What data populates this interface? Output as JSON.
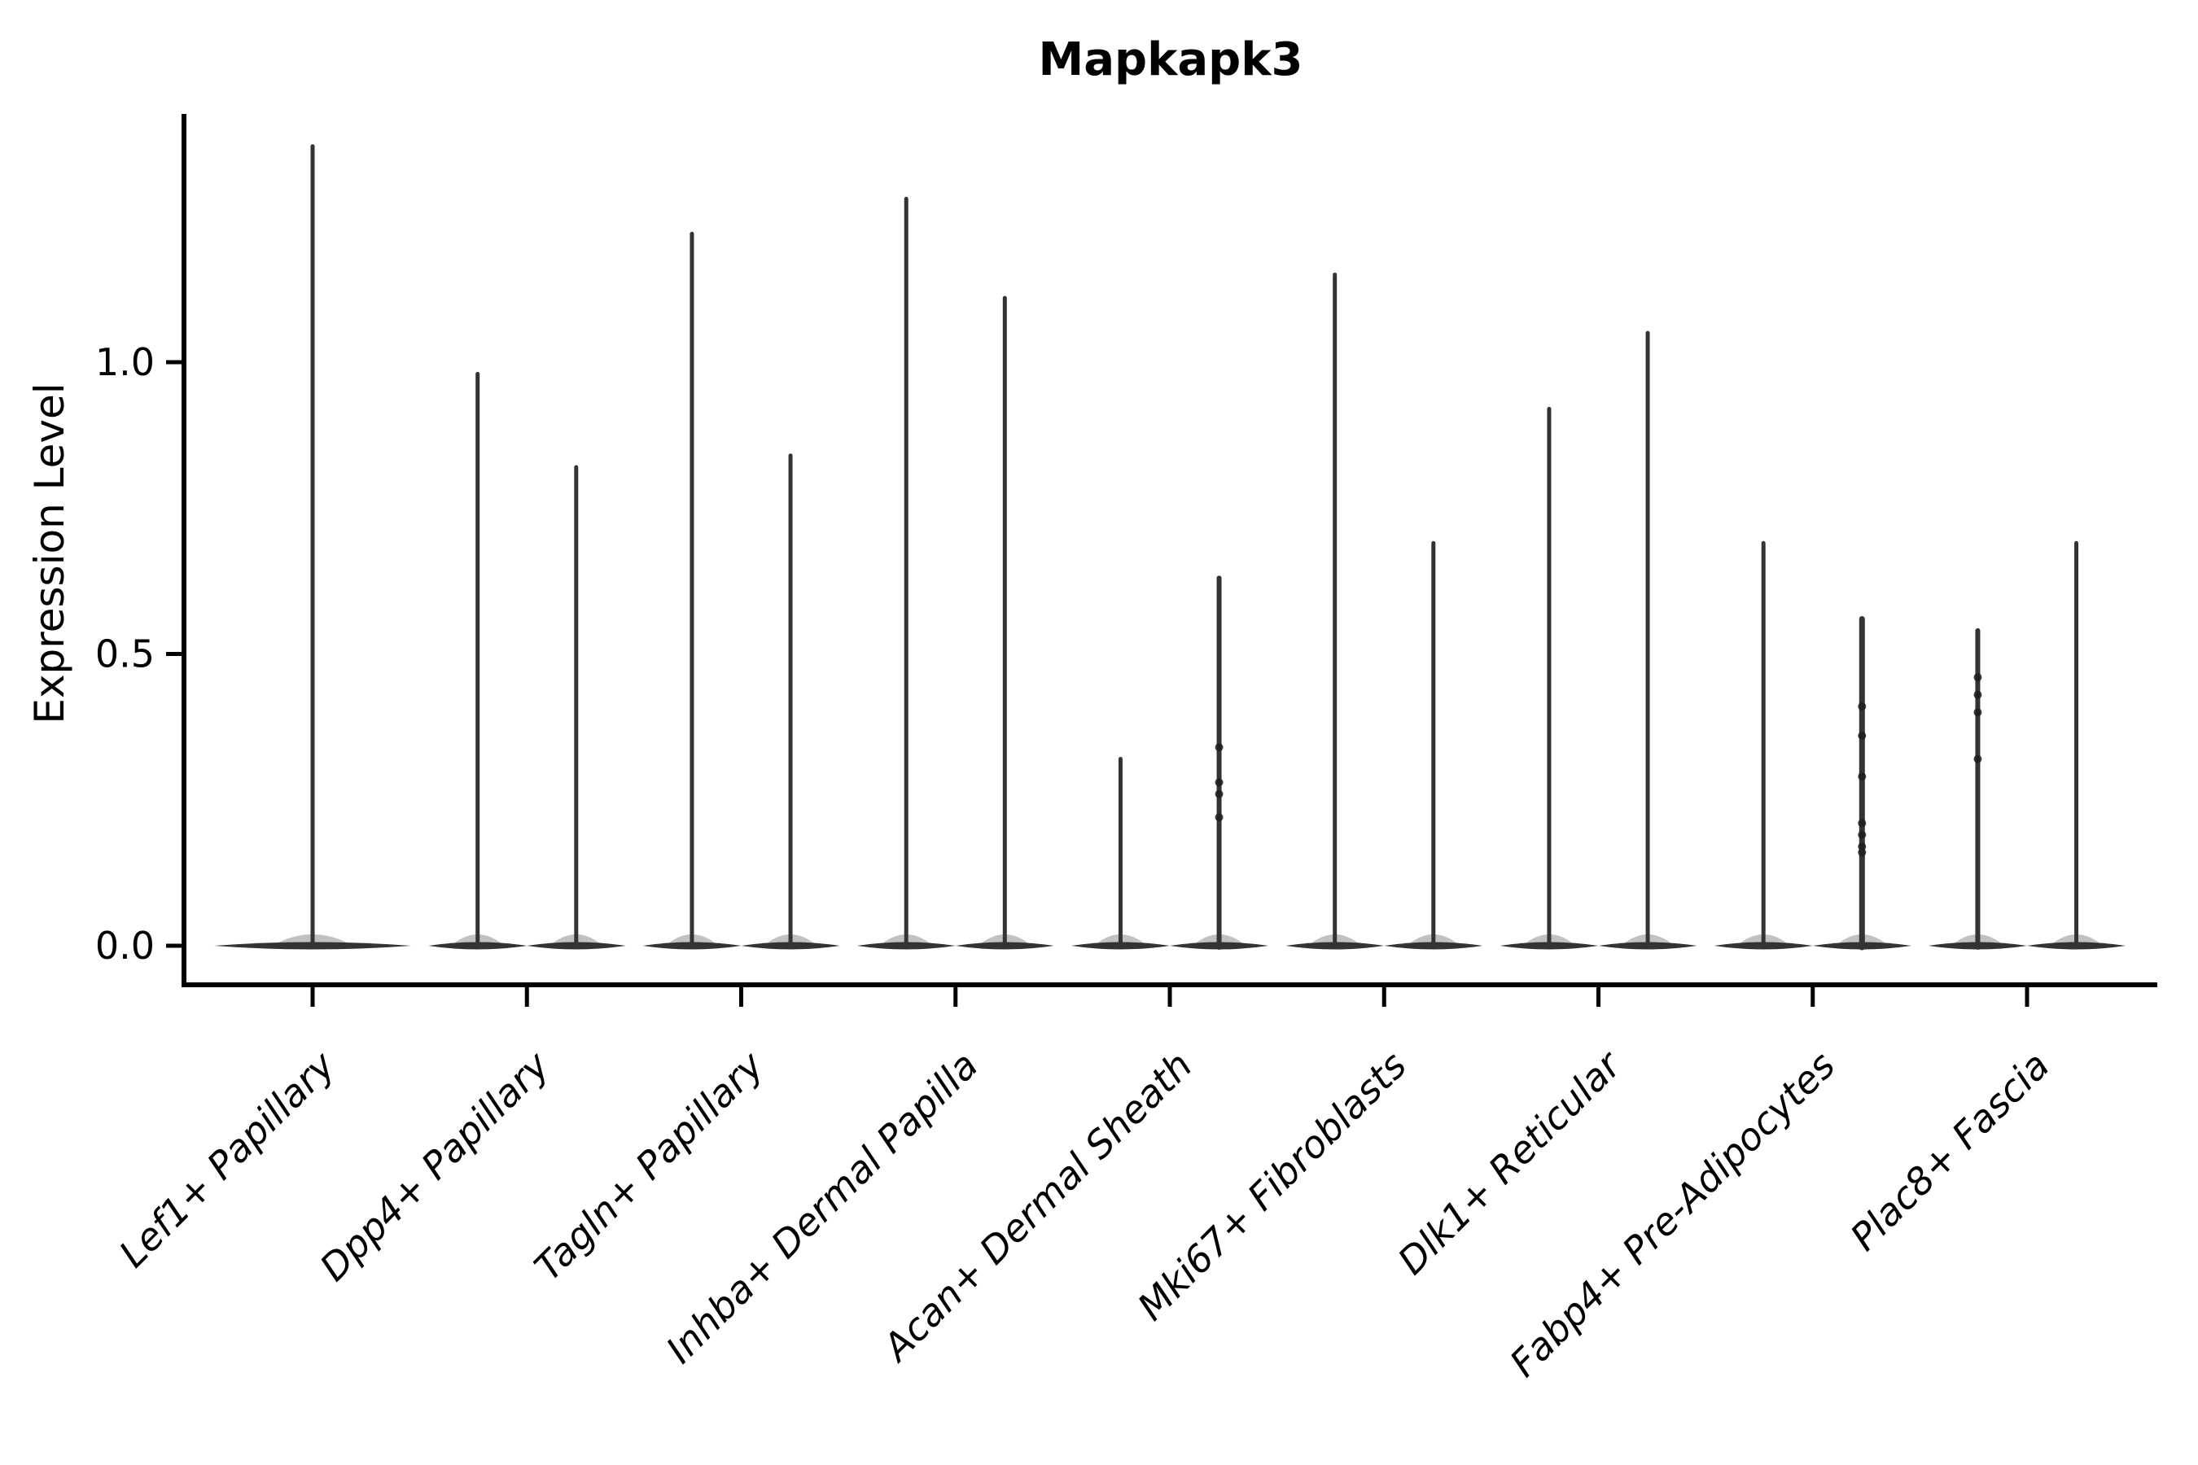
{
  "figure": {
    "background": "#ffffff"
  },
  "chart_data": {
    "type": "violin",
    "title": "Mapkapk3",
    "ylabel": "Expression Level",
    "xlabel": "",
    "yticks": [
      {
        "label": "0.0",
        "value": 0.0
      },
      {
        "label": "0.5",
        "value": 0.5
      },
      {
        "label": "1.0",
        "value": 1.0
      }
    ],
    "ylim": [
      -0.07,
      1.43
    ],
    "grid": false,
    "legend": false,
    "violin_color": "#333333",
    "axis_color": "#000000",
    "point_color": "#1f1f1f",
    "categories": [
      {
        "label": "Lef1+ Papillary",
        "violins": [
          {
            "max": 1.37,
            "offset_frac": 0.0,
            "width_frac": 0.92,
            "spike_width": 5,
            "points": []
          }
        ]
      },
      {
        "label": "Dpp4+ Papillary",
        "violins": [
          {
            "max": 0.98,
            "offset_frac": -0.23,
            "width_frac": 0.46,
            "spike_width": 5,
            "points": []
          },
          {
            "max": 0.82,
            "offset_frac": 0.23,
            "width_frac": 0.46,
            "spike_width": 5,
            "points": []
          }
        ]
      },
      {
        "label": "Tagln+ Papillary",
        "violins": [
          {
            "max": 1.22,
            "offset_frac": -0.23,
            "width_frac": 0.46,
            "spike_width": 5,
            "points": []
          },
          {
            "max": 0.84,
            "offset_frac": 0.23,
            "width_frac": 0.46,
            "spike_width": 5,
            "points": []
          }
        ]
      },
      {
        "label": "Inhba+ Dermal Papilla",
        "violins": [
          {
            "max": 1.28,
            "offset_frac": -0.23,
            "width_frac": 0.46,
            "spike_width": 5,
            "points": []
          },
          {
            "max": 1.11,
            "offset_frac": 0.23,
            "width_frac": 0.46,
            "spike_width": 5,
            "points": []
          }
        ]
      },
      {
        "label": "Acan+ Dermal Sheath",
        "violins": [
          {
            "max": 0.32,
            "offset_frac": -0.23,
            "width_frac": 0.46,
            "spike_width": 5,
            "points": []
          },
          {
            "max": 0.63,
            "offset_frac": 0.23,
            "width_frac": 0.46,
            "spike_width": 6,
            "points": [
              0.34,
              0.28,
              0.26,
              0.22
            ]
          }
        ]
      },
      {
        "label": "Mki67+ Fibroblasts",
        "violins": [
          {
            "max": 1.15,
            "offset_frac": -0.23,
            "width_frac": 0.46,
            "spike_width": 5,
            "points": []
          },
          {
            "max": 0.69,
            "offset_frac": 0.23,
            "width_frac": 0.46,
            "spike_width": 5,
            "points": []
          }
        ]
      },
      {
        "label": "Dlk1+ Reticular",
        "violins": [
          {
            "max": 0.92,
            "offset_frac": -0.23,
            "width_frac": 0.46,
            "spike_width": 5,
            "points": []
          },
          {
            "max": 1.05,
            "offset_frac": 0.23,
            "width_frac": 0.46,
            "spike_width": 5,
            "points": []
          }
        ]
      },
      {
        "label": "Fabp4+ Pre-Adipocytes",
        "violins": [
          {
            "max": 0.69,
            "offset_frac": -0.23,
            "width_frac": 0.46,
            "spike_width": 5,
            "points": []
          },
          {
            "max": 0.56,
            "offset_frac": 0.23,
            "width_frac": 0.46,
            "spike_width": 7,
            "points": [
              0.41,
              0.36,
              0.29,
              0.21,
              0.19,
              0.17,
              0.16
            ]
          }
        ]
      },
      {
        "label": "Plac8+ Fascia",
        "violins": [
          {
            "max": 0.54,
            "offset_frac": -0.23,
            "width_frac": 0.46,
            "spike_width": 6,
            "points": [
              0.46,
              0.43,
              0.4,
              0.32
            ]
          },
          {
            "max": 0.69,
            "offset_frac": 0.23,
            "width_frac": 0.46,
            "spike_width": 5,
            "points": []
          }
        ]
      }
    ]
  }
}
